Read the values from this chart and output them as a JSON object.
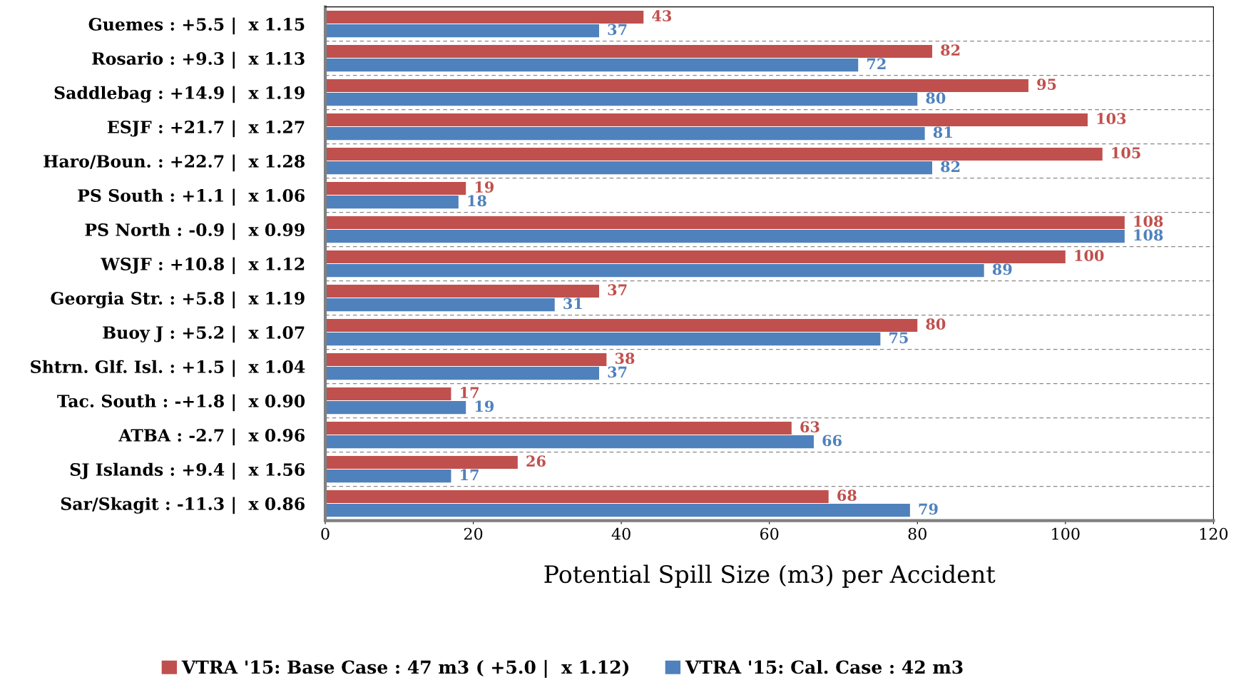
{
  "chart_data": {
    "type": "bar",
    "orientation": "horizontal",
    "xlabel": "Potential Spill Size (m3) per Accident",
    "categories": [
      "Guemes : +5.5 |  x 1.15",
      "Rosario : +9.3 |  x 1.13",
      "Saddlebag : +14.9 |  x 1.19",
      "ESJF : +21.7 |  x 1.27",
      "Haro/Boun. : +22.7 |  x 1.28",
      "PS South : +1.1 |  x 1.06",
      "PS North : -0.9 |  x 0.99",
      "WSJF : +10.8 |  x 1.12",
      "Georgia Str. : +5.8 |  x 1.19",
      "Buoy J : +5.2 |  x 1.07",
      "Shtrn. Glf. Isl. : +1.5 |  x 1.04",
      "Tac. South : -+1.8 |  x 0.90",
      "ATBA : -2.7 |  x 0.96",
      "SJ Islands : +9.4 |  x 1.56",
      "Sar/Skagit : -11.3 |  x 0.86"
    ],
    "series": [
      {
        "name": "VTRA '15: Base Case : 47 m3 ( +5.0 |  x 1.12)",
        "color": "#c0504d",
        "values": [
          43,
          82,
          95,
          103,
          105,
          19,
          108,
          100,
          37,
          80,
          38,
          17,
          63,
          26,
          68
        ]
      },
      {
        "name": "VTRA '15: Cal. Case : 42 m3",
        "color": "#4f81bd",
        "values": [
          37,
          72,
          80,
          81,
          82,
          18,
          108,
          89,
          31,
          75,
          37,
          19,
          66,
          17,
          79
        ]
      }
    ],
    "xlim": [
      0,
      120
    ],
    "xticks": [
      0,
      20,
      40,
      60,
      80,
      100,
      120
    ],
    "grid": "y",
    "legend": "bottom",
    "data_labels": true
  }
}
